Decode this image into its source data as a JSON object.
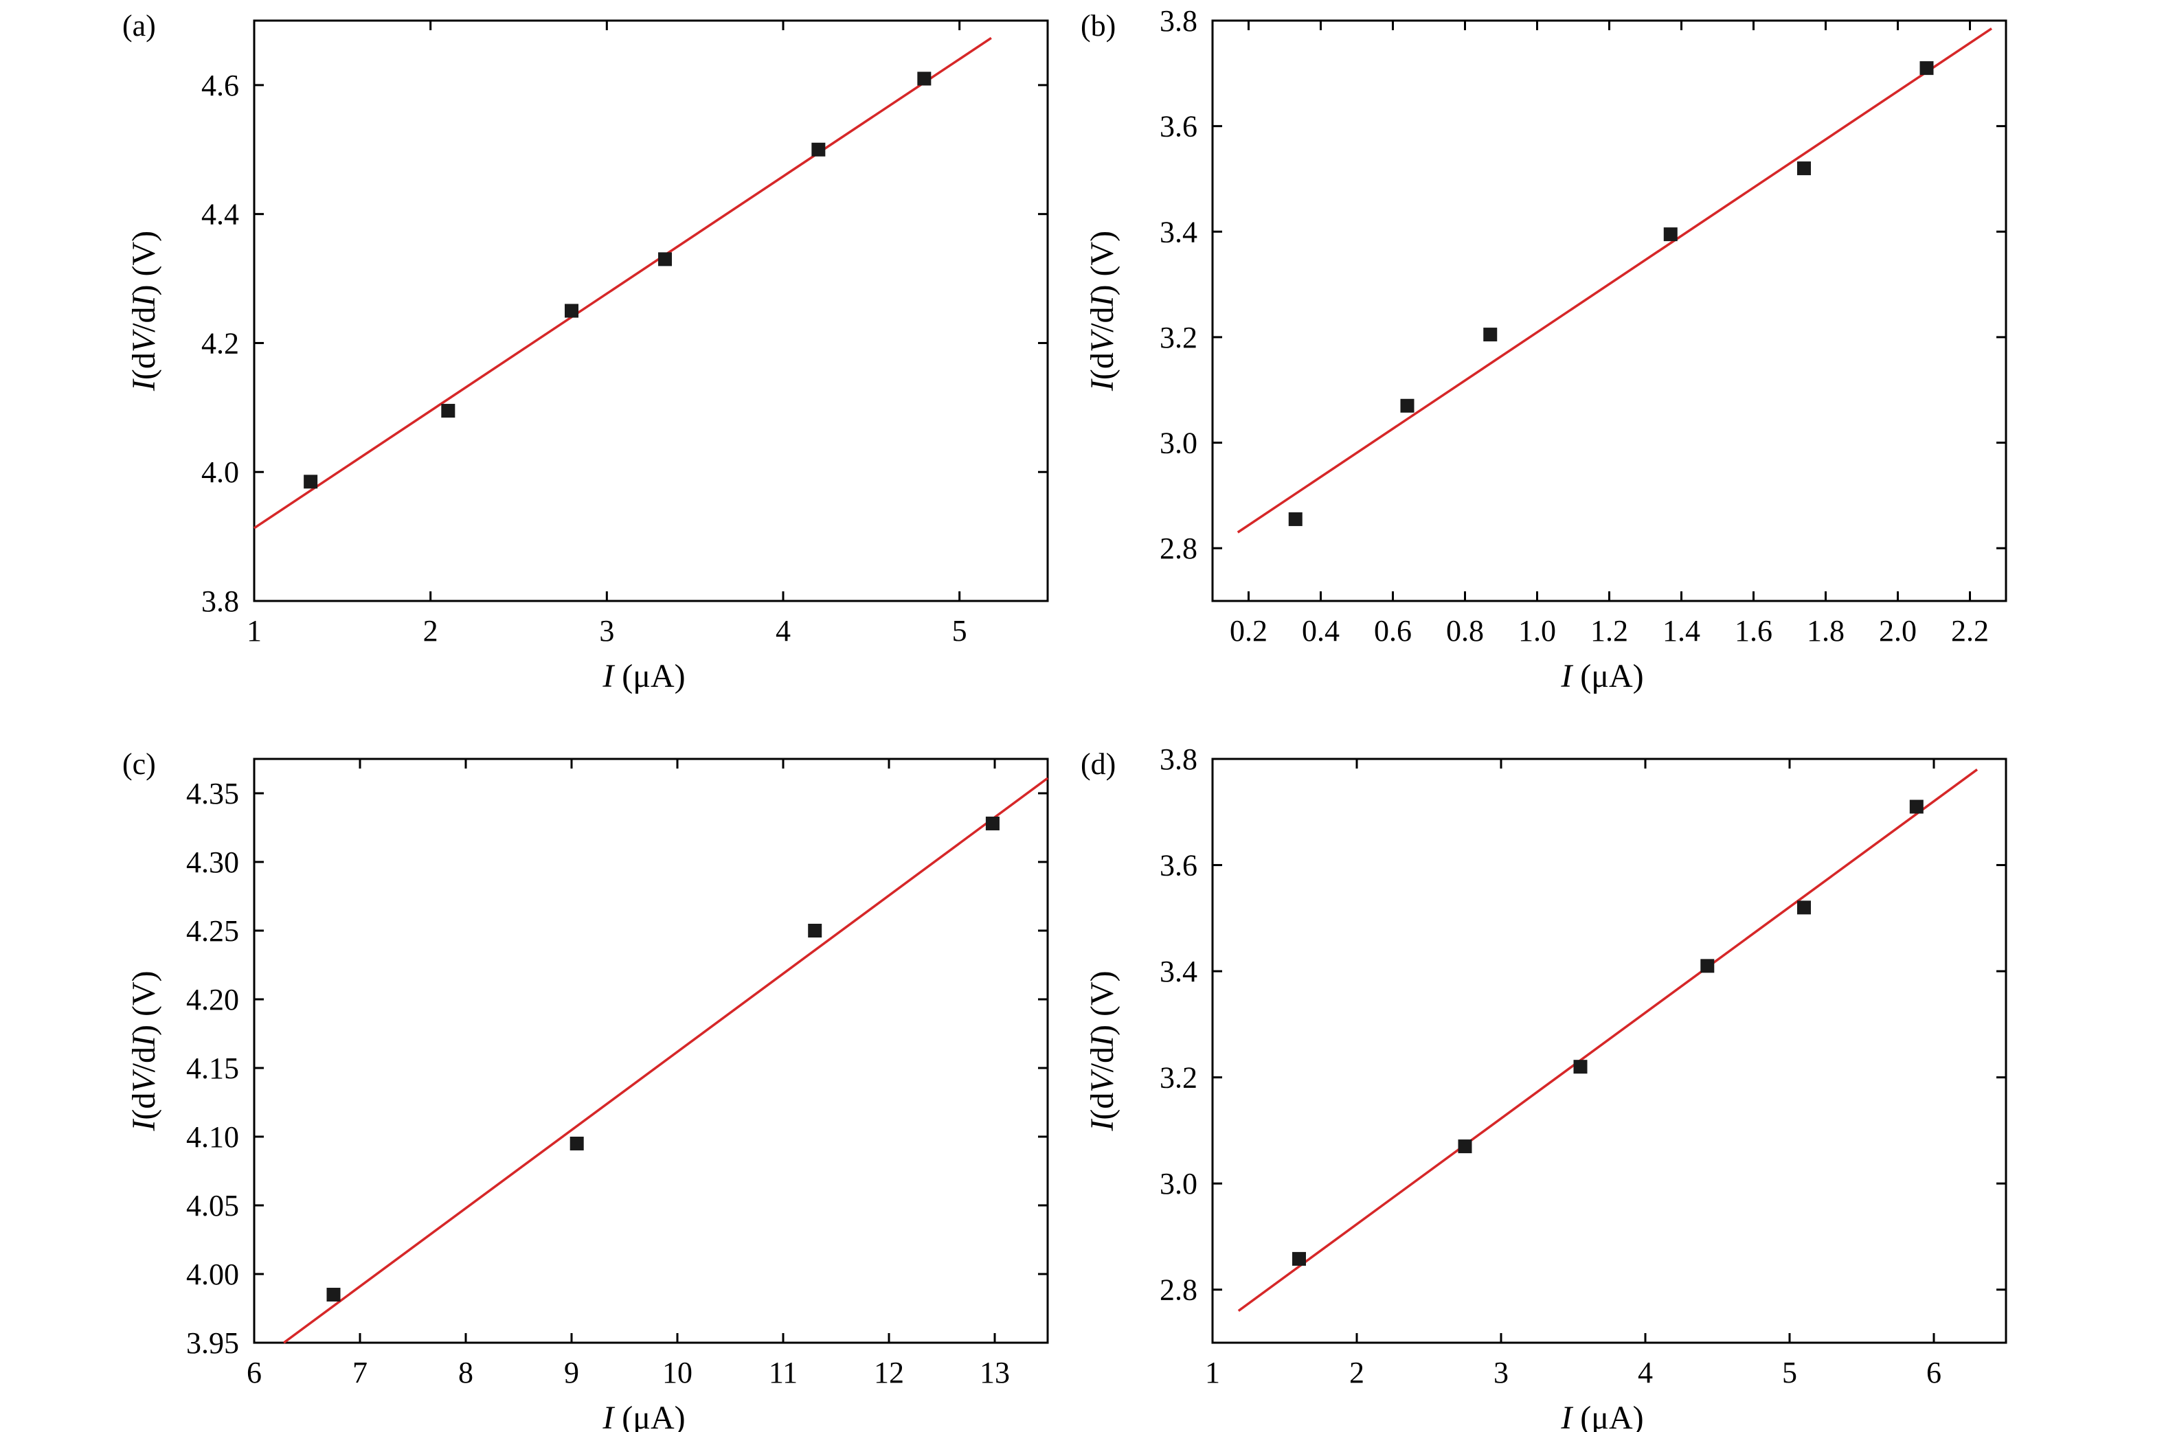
{
  "colors": {
    "fit_line": "#d62728",
    "marker": "#1a1a1a",
    "axes": "#000000"
  },
  "chart_data": [
    {
      "panel_label": "(a)",
      "type": "scatter",
      "xlabel_italic": "I",
      "xlabel_unit": " (μA)",
      "ylabel_parts": [
        "I",
        "(d",
        "V",
        "/d",
        "I",
        ") (V)"
      ],
      "xlim": [
        1,
        5.5
      ],
      "ylim": [
        3.8,
        4.7
      ],
      "xticks": [
        1,
        2,
        3,
        4,
        5
      ],
      "xtick_labels": [
        "1",
        "2",
        "3",
        "4",
        "5"
      ],
      "yticks": [
        3.8,
        4.0,
        4.2,
        4.4,
        4.6
      ],
      "ytick_labels": [
        "3.8",
        "4.0",
        "4.2",
        "4.4",
        "4.6"
      ],
      "series": [
        {
          "type": "scatter",
          "x": [
            1.32,
            2.1,
            2.8,
            3.33,
            4.2,
            4.8
          ],
          "y": [
            3.985,
            4.095,
            4.25,
            4.33,
            4.5,
            4.61
          ]
        }
      ],
      "fit_line": {
        "x": [
          1.0,
          5.18
        ],
        "y": [
          3.913,
          4.673
        ]
      }
    },
    {
      "panel_label": "(b)",
      "type": "scatter",
      "xlabel_italic": "I",
      "xlabel_unit": " (μA)",
      "ylabel_parts": [
        "I",
        "(d",
        "V",
        "/d",
        "I",
        ") (V)"
      ],
      "xlim": [
        0.1,
        2.3
      ],
      "ylim": [
        2.7,
        3.8
      ],
      "xticks": [
        0.2,
        0.4,
        0.6,
        0.8,
        1.0,
        1.2,
        1.4,
        1.6,
        1.8,
        2.0,
        2.2
      ],
      "xtick_labels": [
        "0.2",
        "0.4",
        "0.6",
        "0.8",
        "1.0",
        "1.2",
        "1.4",
        "1.6",
        "1.8",
        "2.0",
        "2.2"
      ],
      "yticks": [
        2.8,
        3.0,
        3.2,
        3.4,
        3.6,
        3.8
      ],
      "ytick_labels": [
        "2.8",
        "3.0",
        "3.2",
        "3.4",
        "3.6",
        "3.8"
      ],
      "series": [
        {
          "type": "scatter",
          "x": [
            0.33,
            0.64,
            0.87,
            1.37,
            1.74,
            2.08
          ],
          "y": [
            2.855,
            3.07,
            3.205,
            3.395,
            3.52,
            3.71
          ]
        }
      ],
      "fit_line": {
        "x": [
          0.17,
          2.26
        ],
        "y": [
          2.83,
          3.785
        ]
      }
    },
    {
      "panel_label": "(c)",
      "type": "scatter",
      "xlabel_italic": "I",
      "xlabel_unit": " (μA)",
      "ylabel_parts": [
        "I",
        "(d",
        "V",
        "/d",
        "I",
        ") (V)"
      ],
      "xlim": [
        6,
        13.5
      ],
      "ylim": [
        3.95,
        4.375
      ],
      "xticks": [
        6,
        7,
        8,
        9,
        10,
        11,
        12,
        13
      ],
      "xtick_labels": [
        "6",
        "7",
        "8",
        "9",
        "10",
        "11",
        "12",
        "13"
      ],
      "yticks": [
        3.95,
        4.0,
        4.05,
        4.1,
        4.15,
        4.2,
        4.25,
        4.3,
        4.35
      ],
      "ytick_labels": [
        "3.95",
        "4.00",
        "4.05",
        "4.10",
        "4.15",
        "4.20",
        "4.25",
        "4.30",
        "4.35"
      ],
      "series": [
        {
          "type": "scatter",
          "x": [
            6.75,
            9.05,
            11.3,
            12.98
          ],
          "y": [
            3.985,
            4.095,
            4.25,
            4.328
          ]
        }
      ],
      "fit_line": {
        "x": [
          6.28,
          13.5
        ],
        "y": [
          3.95,
          4.361
        ]
      }
    },
    {
      "panel_label": "(d)",
      "type": "scatter",
      "xlabel_italic": "I",
      "xlabel_unit": " (μA)",
      "ylabel_parts": [
        "I",
        "(d",
        "V",
        "/d",
        "I",
        ") (V)"
      ],
      "xlim": [
        1,
        6.5
      ],
      "ylim": [
        2.7,
        3.8
      ],
      "xticks": [
        1,
        2,
        3,
        4,
        5,
        6
      ],
      "xtick_labels": [
        "1",
        "2",
        "3",
        "4",
        "5",
        "6"
      ],
      "yticks": [
        2.8,
        3.0,
        3.2,
        3.4,
        3.6,
        3.8
      ],
      "ytick_labels": [
        "2.8",
        "3.0",
        "3.2",
        "3.4",
        "3.6",
        "3.8"
      ],
      "series": [
        {
          "type": "scatter",
          "x": [
            1.6,
            2.75,
            3.55,
            4.43,
            5.1,
            5.88
          ],
          "y": [
            2.858,
            3.07,
            3.22,
            3.41,
            3.52,
            3.71
          ]
        }
      ],
      "fit_line": {
        "x": [
          1.18,
          6.3
        ],
        "y": [
          2.76,
          3.78
        ]
      }
    }
  ]
}
